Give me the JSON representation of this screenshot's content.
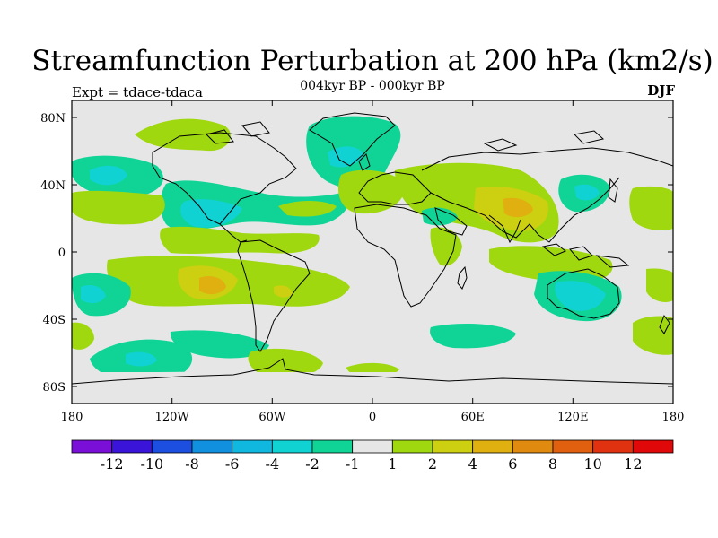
{
  "title": "Streamfunction Perturbation at 200 hPa (km2/s)",
  "subtitle": "004kyr BP - 000kyr BP",
  "left_label": "Expt = tdace-tdaca",
  "right_label": "DJF",
  "axes": {
    "lat_ticks": [
      "80N",
      "40N",
      "0",
      "40S",
      "80S"
    ],
    "lon_ticks": [
      "180",
      "120W",
      "60W",
      "0",
      "60E",
      "120E",
      "180"
    ]
  },
  "colorbar": {
    "labels": [
      "-12",
      "-10",
      "-8",
      "-6",
      "-4",
      "-2",
      "-1",
      "1",
      "2",
      "4",
      "6",
      "8",
      "10",
      "12"
    ],
    "colors": [
      "#7a10d8",
      "#3a14d8",
      "#1c4ee0",
      "#1290e0",
      "#10b8e0",
      "#10d2d2",
      "#10d496",
      "#e6e6e6",
      "#a0d810",
      "#ccd010",
      "#e0b010",
      "#e08a10",
      "#e06010",
      "#e03210",
      "#e00808"
    ]
  },
  "fill_colors": {
    "ocean_bg": "#e6e6e6",
    "neg_light": "#10d496",
    "neg_mid": "#10d2d2",
    "pos_light": "#a0d810",
    "pos_mid": "#ccd010",
    "pos_high": "#e0b010"
  }
}
